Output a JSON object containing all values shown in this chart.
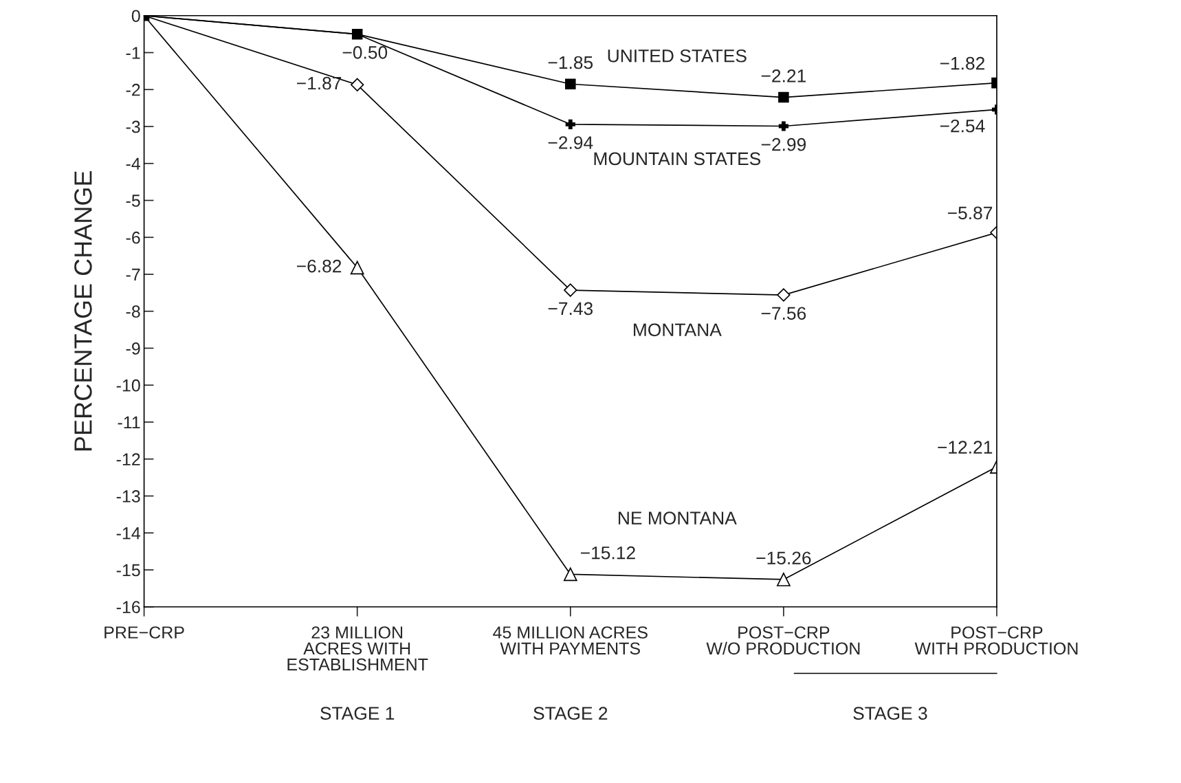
{
  "chart_data": {
    "type": "line",
    "ylabel": "PERCENTAGE CHANGE",
    "categories": [
      "PRE−CRP",
      "23 MILLION\nACRES WITH\nESTABLISHMENT",
      "45 MILLION ACRES\nWITH PAYMENTS",
      "POST−CRP\nW/O PRODUCTION",
      "POST−CRP\nWITH PRODUCTION"
    ],
    "series": [
      {
        "name": "UNITED STATES",
        "color": "#000000",
        "marker": "square",
        "values": [
          0,
          -0.5,
          -1.85,
          -2.21,
          -1.82
        ],
        "value_labels": [
          null,
          "−0.50",
          "−1.85",
          "−2.21",
          "−1.82"
        ]
      },
      {
        "name": "MOUNTAIN STATES",
        "color": "#000000",
        "marker": "cross",
        "values": [
          0,
          -0.5,
          -2.94,
          -2.99,
          -2.54
        ],
        "value_labels": [
          null,
          null,
          "−2.94",
          "−2.99",
          "−2.54"
        ]
      },
      {
        "name": "MONTANA",
        "color": "#000000",
        "marker": "diamond",
        "values": [
          0,
          -1.87,
          -7.43,
          -7.56,
          -5.87
        ],
        "value_labels": [
          null,
          "−1.87",
          "−7.43",
          "−7.56",
          "−5.87"
        ]
      },
      {
        "name": "NE MONTANA",
        "color": "#000000",
        "marker": "triangle",
        "values": [
          0,
          -6.82,
          -15.12,
          -15.26,
          -12.21
        ],
        "value_labels": [
          null,
          "−6.82",
          "−15.12",
          "−15.26",
          "−12.21"
        ]
      }
    ],
    "ylim": [
      -16,
      0
    ],
    "yticks": [
      0,
      -1,
      -2,
      -3,
      -4,
      -5,
      -6,
      -7,
      -8,
      -9,
      -10,
      -11,
      -12,
      -13,
      -14,
      -15,
      -16
    ],
    "grid": false,
    "legend": false,
    "annotations": [
      "STAGE 1",
      "STAGE 2",
      "STAGE 3"
    ]
  }
}
